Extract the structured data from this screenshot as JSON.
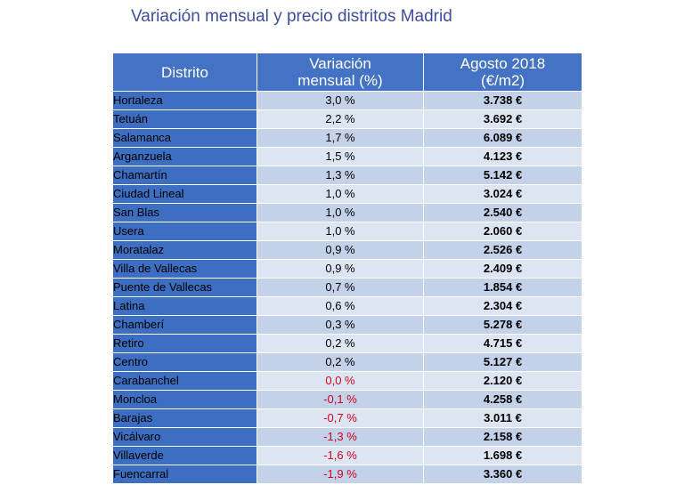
{
  "title": "Variación mensual y precio distritos Madrid",
  "table": {
    "headers": {
      "district": "Distrito",
      "variation_line1": "Variación",
      "variation_line2": "mensual (%)",
      "price_line1": "Agosto 2018",
      "price_line2": "(€/m2)"
    },
    "rows": [
      {
        "district": "Hortaleza",
        "variation": "3,0 %",
        "price": "3.738 €",
        "negative": false
      },
      {
        "district": "Tetuán",
        "variation": "2,2 %",
        "price": "3.692 €",
        "negative": false
      },
      {
        "district": "Salamanca",
        "variation": "1,7 %",
        "price": "6.089 €",
        "negative": false
      },
      {
        "district": "Arganzuela",
        "variation": "1,5 %",
        "price": "4.123 €",
        "negative": false
      },
      {
        "district": "Chamartín",
        "variation": "1,3 %",
        "price": "5.142 €",
        "negative": false
      },
      {
        "district": "Ciudad Lineal",
        "variation": "1,0 %",
        "price": "3.024 €",
        "negative": false
      },
      {
        "district": "San Blas",
        "variation": "1,0 %",
        "price": "2.540 €",
        "negative": false
      },
      {
        "district": "Usera",
        "variation": "1,0 %",
        "price": "2.060 €",
        "negative": false
      },
      {
        "district": "Moratalaz",
        "variation": "0,9 %",
        "price": "2.526 €",
        "negative": false
      },
      {
        "district": "Villa de Vallecas",
        "variation": "0,9 %",
        "price": "2.409 €",
        "negative": false
      },
      {
        "district": "Puente de Vallecas",
        "variation": "0,7 %",
        "price": "1.854 €",
        "negative": false
      },
      {
        "district": "Latina",
        "variation": "0,6 %",
        "price": "2.304 €",
        "negative": false
      },
      {
        "district": "Chamberí",
        "variation": "0,3 %",
        "price": "5.278 €",
        "negative": false
      },
      {
        "district": "Retiro",
        "variation": "0,2 %",
        "price": "4.715 €",
        "negative": false
      },
      {
        "district": "Centro",
        "variation": "0,2 %",
        "price": "5.127 €",
        "negative": false
      },
      {
        "district": "Carabanchel",
        "variation": "0,0 %",
        "price": "2.120 €",
        "negative": true
      },
      {
        "district": "Moncloa",
        "variation": "-0,1 %",
        "price": "4.258 €",
        "negative": true
      },
      {
        "district": "Barajas",
        "variation": "-0,7 %",
        "price": "3.011 €",
        "negative": true
      },
      {
        "district": "Vicálvaro",
        "variation": "-1,3 %",
        "price": "2.158 €",
        "negative": true
      },
      {
        "district": "Villaverde",
        "variation": "-1,6 %",
        "price": "1.698 €",
        "negative": true
      },
      {
        "district": "Fuencarral",
        "variation": "-1,9 %",
        "price": "3.360 €",
        "negative": true
      }
    ]
  },
  "colors": {
    "header_bg": "#4472c4",
    "name_bg": "#3e6ec1",
    "row_even": "#c3d1e9",
    "row_odd": "#dde5f3",
    "negative_text": "#d0021b",
    "title_text": "#3f4e9c"
  },
  "chart_data": {
    "type": "table",
    "title": "Variación mensual y precio distritos Madrid",
    "columns": [
      "Distrito",
      "Variación mensual (%)",
      "Agosto 2018 (€/m2)"
    ],
    "categories": [
      "Hortaleza",
      "Tetuán",
      "Salamanca",
      "Arganzuela",
      "Chamartín",
      "Ciudad Lineal",
      "San Blas",
      "Usera",
      "Moratalaz",
      "Villa de Vallecas",
      "Puente de Vallecas",
      "Latina",
      "Chamberí",
      "Retiro",
      "Centro",
      "Carabanchel",
      "Moncloa",
      "Barajas",
      "Vicálvaro",
      "Villaverde",
      "Fuencarral"
    ],
    "series": [
      {
        "name": "Variación mensual (%)",
        "values": [
          3.0,
          2.2,
          1.7,
          1.5,
          1.3,
          1.0,
          1.0,
          1.0,
          0.9,
          0.9,
          0.7,
          0.6,
          0.3,
          0.2,
          0.2,
          0.0,
          -0.1,
          -0.7,
          -1.3,
          -1.6,
          -1.9
        ]
      },
      {
        "name": "Agosto 2018 (€/m2)",
        "values": [
          3738,
          3692,
          6089,
          4123,
          5142,
          3024,
          2540,
          2060,
          2526,
          2409,
          1854,
          2304,
          5278,
          4715,
          5127,
          2120,
          4258,
          3011,
          2158,
          1698,
          3360
        ]
      }
    ]
  }
}
